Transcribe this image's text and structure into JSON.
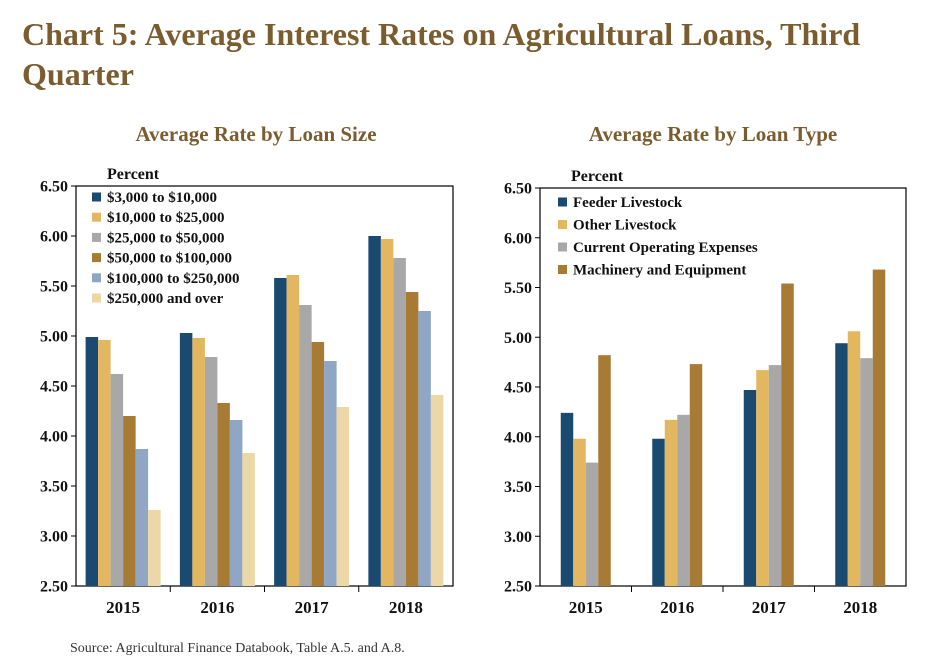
{
  "page": {
    "title": "Chart 5: Average Interest Rates on Agricultural Loans, Third Quarter",
    "source": "Source: Agricultural Finance Databook, Table A.5. and A.8."
  },
  "colors": {
    "title": "#7a5c2e",
    "navy": "#1b4a70",
    "gold": "#e3b760",
    "gray": "#a8a8a8",
    "brown": "#a87b35",
    "lightblue": "#8fa6c5",
    "cream": "#ecd7a6"
  },
  "chart_data": [
    {
      "type": "bar",
      "title": "Average Rate by Loan Size",
      "ylabel": "Percent",
      "categories": [
        "2015",
        "2016",
        "2017",
        "2018"
      ],
      "ylim": [
        2.5,
        6.5
      ],
      "yticks": [
        "2.50",
        "3.00",
        "3.50",
        "4.00",
        "4.50",
        "5.00",
        "5.50",
        "6.00",
        "6.50"
      ],
      "legend_position": "top-left",
      "grid": false,
      "series": [
        {
          "name": "$3,000 to $10,000",
          "color": "#1b4a70",
          "values": [
            4.99,
            5.03,
            5.58,
            6.0
          ]
        },
        {
          "name": "$10,000 to $25,000",
          "color": "#e3b760",
          "values": [
            4.96,
            4.98,
            5.61,
            5.97
          ]
        },
        {
          "name": "$25,000 to $50,000",
          "color": "#a8a8a8",
          "values": [
            4.62,
            4.79,
            5.31,
            5.78
          ]
        },
        {
          "name": "$50,000 to $100,000",
          "color": "#a87b35",
          "values": [
            4.2,
            4.33,
            4.94,
            5.44
          ]
        },
        {
          "name": "$100,000 to $250,000",
          "color": "#8fa6c5",
          "values": [
            3.87,
            4.16,
            4.75,
            5.25
          ]
        },
        {
          "name": "$250,000 and over",
          "color": "#ecd7a6",
          "values": [
            3.26,
            3.83,
            4.29,
            4.41
          ]
        }
      ]
    },
    {
      "type": "bar",
      "title": "Average Rate by Loan Type",
      "ylabel": "Percent",
      "categories": [
        "2015",
        "2016",
        "2017",
        "2018"
      ],
      "ylim": [
        2.5,
        6.5
      ],
      "yticks": [
        "2.50",
        "3.00",
        "3.50",
        "4.00",
        "4.50",
        "5.00",
        "5.50",
        "6.00",
        "6.50"
      ],
      "legend_position": "top-left",
      "grid": false,
      "series": [
        {
          "name": "Feeder Livestock",
          "color": "#1b4a70",
          "values": [
            4.24,
            3.98,
            4.47,
            4.94
          ]
        },
        {
          "name": "Other Livestock",
          "color": "#e3b760",
          "values": [
            3.98,
            4.17,
            4.67,
            5.06
          ]
        },
        {
          "name": "Current Operating Expenses",
          "color": "#a8a8a8",
          "values": [
            3.74,
            4.22,
            4.72,
            4.79
          ]
        },
        {
          "name": "Machinery and Equipment",
          "color": "#a87b35",
          "values": [
            4.82,
            4.73,
            5.54,
            5.68
          ]
        }
      ]
    }
  ]
}
